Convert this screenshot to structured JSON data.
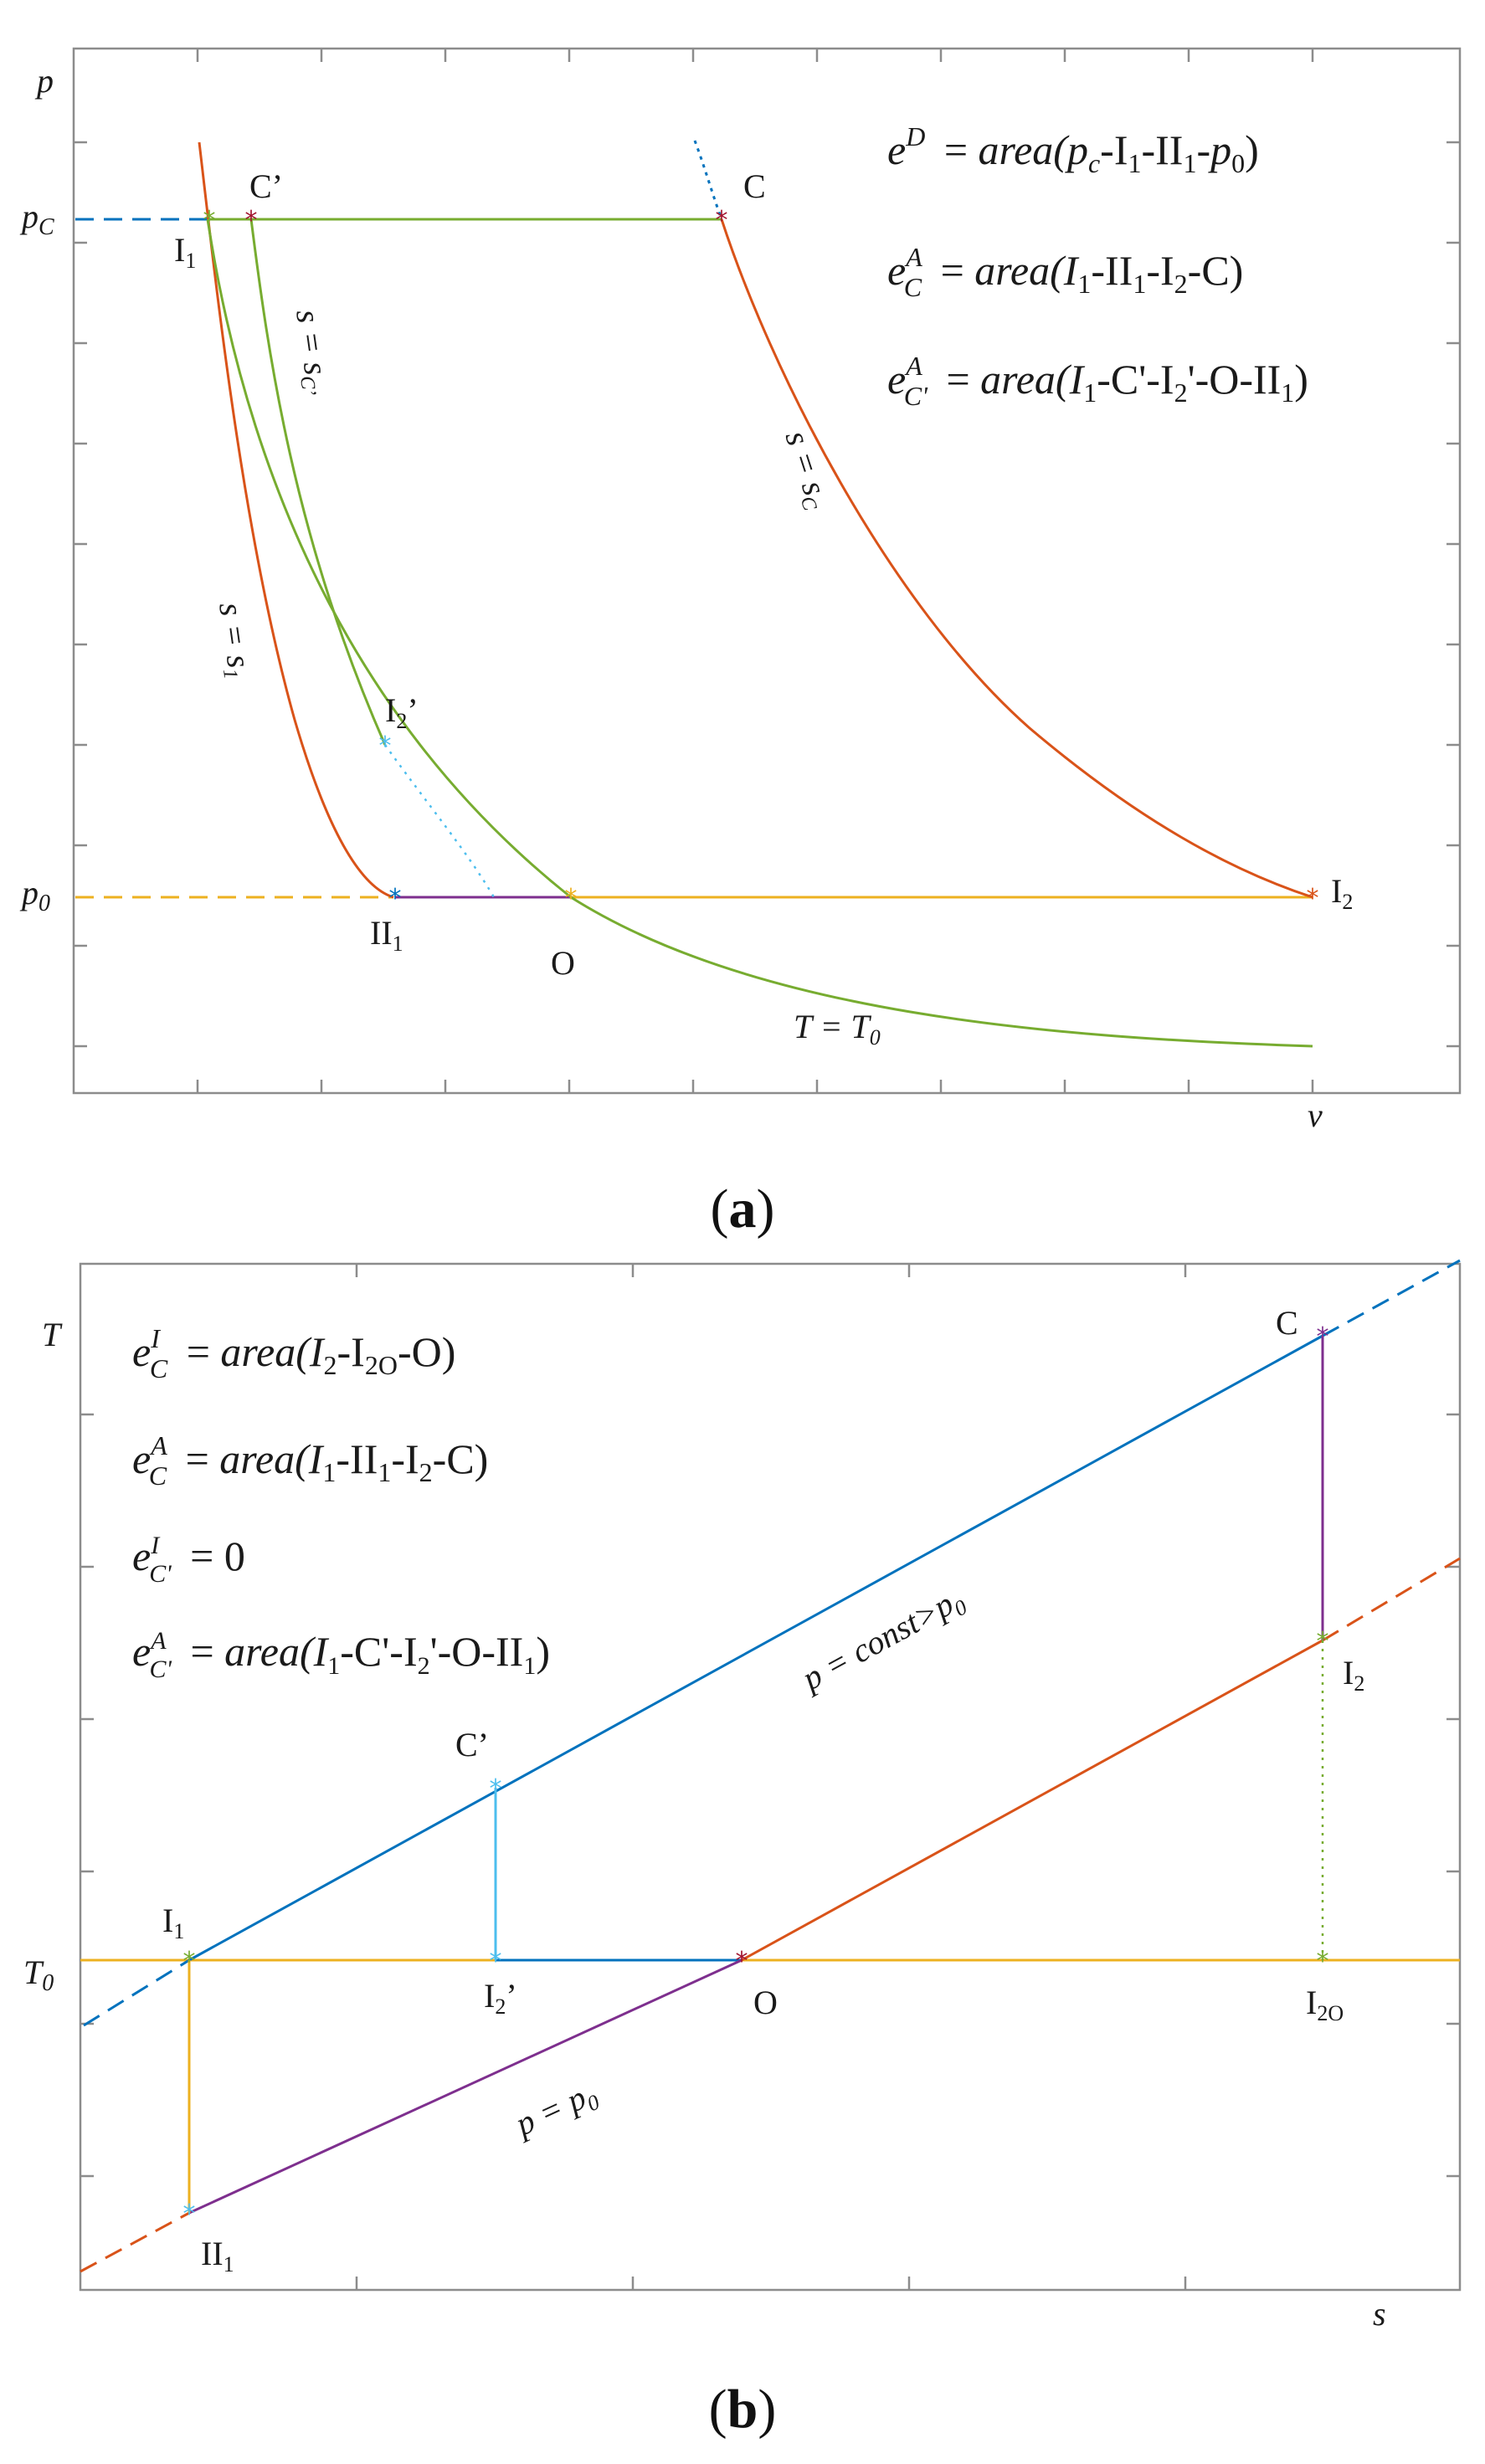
{
  "figure": {
    "panel_a": {
      "label_open": "(",
      "label_letter": "a",
      "label_close": ")",
      "axis_y": "p",
      "axis_x": "v",
      "tick_pc": "p",
      "tick_pc_sub": "C",
      "tick_p0": "p",
      "tick_p0_sub": "0",
      "equations": [
        {
          "lhs": "e",
          "sup": "D",
          "sub": "",
          "rhs": "area(p",
          "rhs2": "c",
          "rhs3": "-I",
          "rhs4": "1",
          "rhs5": "-II",
          "rhs6": "1",
          "rhs7": "-p",
          "rhs8": "0",
          "rhs9": ")"
        },
        {
          "lhs": "e",
          "sup": "A",
          "sub": "C",
          "rhs": "area(I",
          "rhs2": "1",
          "rhs3": "-II",
          "rhs4": "1",
          "rhs5": "-I",
          "rhs6": "2",
          "rhs7": "-C)"
        },
        {
          "lhs": "e",
          "sup": "A",
          "sub": "C'",
          "rhs": "area(I",
          "rhs2": "1",
          "rhs3": "-C'-I",
          "rhs4": "2",
          "rhs5": "'-O-II",
          "rhs6": "1",
          "rhs7": ")"
        }
      ],
      "points": {
        "I1": {
          "name": "I",
          "sub": "1"
        },
        "C_prime": {
          "name": "C’"
        },
        "C": {
          "name": "C"
        },
        "I2_prime": {
          "name": "I",
          "sub": "2",
          "suffix": "’"
        },
        "II1": {
          "name": "II",
          "sub": "1"
        },
        "O": {
          "name": "O"
        },
        "I2": {
          "name": "I",
          "sub": "2"
        }
      },
      "curve_labels": {
        "s_sC_prime": "s = s",
        "s_sC_prime_sub": "C’",
        "s_sC": "s = s",
        "s_sC_sub": "C",
        "s_s1": "s = s",
        "s_s1_sub": "1",
        "T_T0": "T = T",
        "T_T0_sub": "0"
      },
      "colors": {
        "isentrope": "#d95319",
        "isotherm": "#77ac30",
        "isobar_p0": "#edb120",
        "isobar_pc": "#0072bd",
        "purple": "#7e2f8e",
        "cyan": "#4dbeee",
        "dark_red": "#a2142f"
      }
    },
    "panel_b": {
      "label_open": "(",
      "label_letter": "b",
      "label_close": ")",
      "axis_y": "T",
      "axis_x": "s",
      "tick_T0": "T",
      "tick_T0_sub": "0",
      "equations": [
        {
          "lhs": "e",
          "sup": "I",
          "sub": "C",
          "rhs": "area(I",
          "rhs2": "2",
          "rhs3": "-I",
          "rhs4": "2O",
          "rhs5": "-O)"
        },
        {
          "lhs": "e",
          "sup": "A",
          "sub": "C",
          "rhs": "area(I",
          "rhs2": "1",
          "rhs3": "-II",
          "rhs4": "1",
          "rhs5": "-I",
          "rhs6": "2",
          "rhs7": "-C)"
        },
        {
          "lhs": "e",
          "sup": "I",
          "sub": "C'",
          "rhs": "0"
        },
        {
          "lhs": "e",
          "sup": "A",
          "sub": "C'",
          "rhs": "area(I",
          "rhs2": "1",
          "rhs3": "-C'-I",
          "rhs4": "2",
          "rhs5": "'-O-II",
          "rhs6": "1",
          "rhs7": ")"
        }
      ],
      "points": {
        "C": {
          "name": "C"
        },
        "I2": {
          "name": "I",
          "sub": "2"
        },
        "C_prime": {
          "name": "C’"
        },
        "I1": {
          "name": "I",
          "sub": "1"
        },
        "I2_prime": {
          "name": "I",
          "sub": "2",
          "suffix": "’"
        },
        "O": {
          "name": "O"
        },
        "I2O": {
          "name": "I",
          "sub": "2O"
        },
        "II1": {
          "name": "II",
          "sub": "1"
        }
      },
      "line_labels": {
        "p_const": "p = const>p",
        "p_const_sub": "0",
        "p_p0": "p = p",
        "p_p0_sub": "0"
      }
    }
  }
}
